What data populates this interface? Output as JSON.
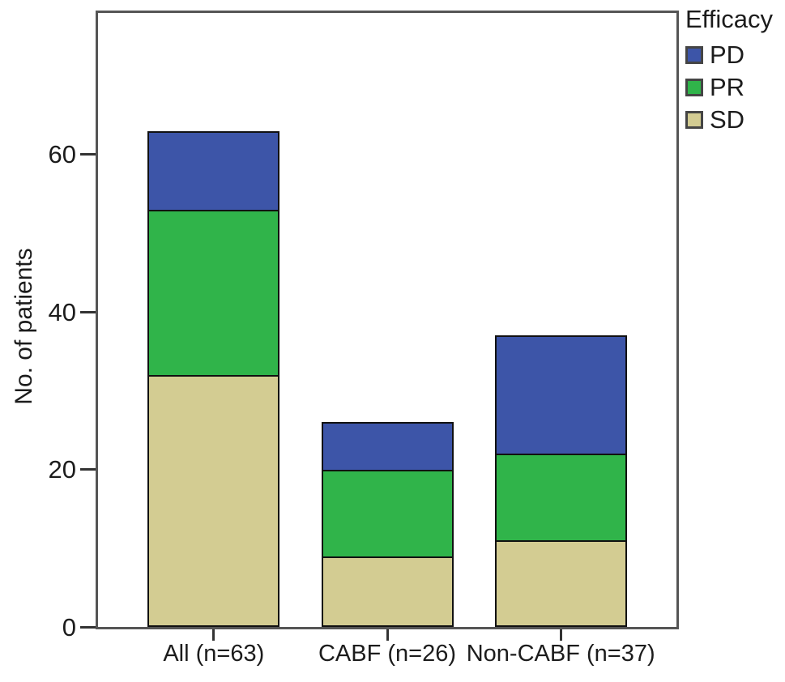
{
  "figure": {
    "ylabel": "No. of patients",
    "background": "#ffffff",
    "frame_color": "#555555",
    "text_color": "#1c1c1c"
  },
  "chart_data": {
    "type": "bar",
    "stacked": true,
    "title": "",
    "xlabel": "",
    "ylabel": "No. of patients",
    "ylim": [
      0,
      78
    ],
    "y_ticks": [
      0,
      20,
      40,
      60
    ],
    "grid": false,
    "categories": [
      "All (n=63)",
      "CABF (n=26)",
      "Non-CABF (n=37)"
    ],
    "totals": [
      63,
      26,
      37
    ],
    "series": [
      {
        "name": "SD",
        "color": "#d3cc92",
        "values": [
          32,
          9,
          11
        ]
      },
      {
        "name": "PR",
        "color": "#30b44a",
        "values": [
          21,
          11,
          11
        ]
      },
      {
        "name": "PD",
        "color": "#3d55a8",
        "values": [
          10,
          6,
          15
        ]
      }
    ],
    "stack_order_bottom_to_top": [
      "SD",
      "PR",
      "PD"
    ],
    "legend": {
      "title": "Efficacy",
      "position": "outside-top-right",
      "entries": [
        "PD",
        "PR",
        "SD"
      ]
    }
  }
}
